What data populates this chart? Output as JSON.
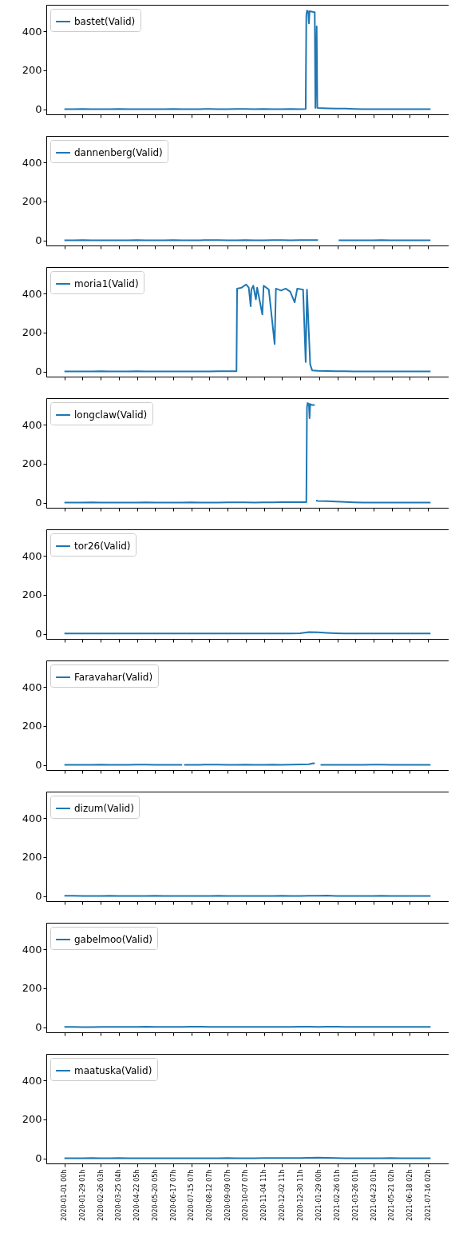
{
  "chart_data": [
    {
      "type": "line",
      "legend": "top left",
      "tick_labels": "y",
      "ylim": [
        -25,
        535
      ],
      "yticks": [
        0,
        200,
        400
      ],
      "xlim": [
        "2019-12-04",
        "2021-08-17"
      ],
      "xticks": [
        {
          "value": "2020-01-01T00:00",
          "label": null
        },
        {
          "value": "2020-01-29T01:00",
          "label": null
        },
        {
          "value": "2020-02-26T03:00",
          "label": null
        },
        {
          "value": "2020-03-25T04:00",
          "label": null
        },
        {
          "value": "2020-04-22T05:00",
          "label": null
        },
        {
          "value": "2020-05-20T05:00",
          "label": null
        },
        {
          "value": "2020-06-17T07:00",
          "label": null
        },
        {
          "value": "2020-07-15T07:00",
          "label": null
        },
        {
          "value": "2020-08-12T07:00",
          "label": null
        },
        {
          "value": "2020-09-09T07:00",
          "label": null
        },
        {
          "value": "2020-10-07T07:00",
          "label": null
        },
        {
          "value": "2020-11-04T11:00",
          "label": null
        },
        {
          "value": "2020-12-02T11:00",
          "label": null
        },
        {
          "value": "2020-12-30T11:00",
          "label": null
        },
        {
          "value": "2021-01-29T00:00",
          "label": null
        },
        {
          "value": "2021-02-26T01:00",
          "label": null
        },
        {
          "value": "2021-03-26T01:00",
          "label": null
        },
        {
          "value": "2021-04-23T01:00",
          "label": null
        },
        {
          "value": "2021-05-21T02:00",
          "label": null
        },
        {
          "value": "2021-06-18T02:00",
          "label": null
        },
        {
          "value": "2021-07-16T02:00",
          "label": null
        }
      ],
      "x": [
        "2020-01-01",
        "2020-01-15",
        "2020-01-29",
        "2020-02-12",
        "2020-02-26",
        "2020-03-11",
        "2020-03-25",
        "2020-04-08",
        "2020-04-22",
        "2020-05-06",
        "2020-05-20",
        "2020-06-03",
        "2020-06-17",
        "2020-07-01",
        "2020-07-15",
        "2020-07-29",
        "2020-08-12",
        "2020-08-26",
        "2020-09-09",
        "2020-09-23",
        "2020-10-07",
        "2020-10-21",
        "2020-11-04",
        "2020-11-18",
        "2020-12-02",
        "2020-12-16",
        "2020-12-30",
        "2021-01-08",
        "2021-01-09",
        "2021-01-10",
        "2021-01-12",
        "2021-01-13",
        "2021-01-14",
        "2021-01-17",
        "2021-01-20",
        "2021-01-22",
        "2021-01-23",
        "2021-01-25",
        "2021-01-26",
        "2021-01-27",
        "2021-02-10",
        "2021-02-24",
        "2021-03-10",
        "2021-03-24",
        "2021-04-07",
        "2021-04-21",
        "2021-05-05",
        "2021-05-19",
        "2021-06-02",
        "2021-06-16",
        "2021-06-30",
        "2021-07-14",
        "2021-07-20"
      ],
      "series": [
        {
          "name": "bastet(Valid)",
          "color": "#1f77b4",
          "values": [
            2,
            2,
            3,
            2,
            2,
            2,
            3,
            2,
            2,
            2,
            2,
            2,
            3,
            2,
            2,
            2,
            3,
            2,
            2,
            3,
            3,
            2,
            3,
            2,
            2,
            3,
            2,
            3,
            480,
            505,
            500,
            440,
            502,
            500,
            498,
            497,
            8,
            425,
            9,
            8,
            6,
            5,
            5,
            3,
            2,
            2,
            2,
            2,
            2,
            2,
            2,
            2,
            2
          ]
        }
      ]
    },
    {
      "type": "line",
      "legend": "top left",
      "tick_labels": "y",
      "ylim": [
        -25,
        535
      ],
      "yticks": [
        0,
        200,
        400
      ],
      "xlim": [
        "2019-12-04",
        "2021-08-17"
      ],
      "xticks": [
        {
          "value": "2020-01-01T00:00",
          "label": null
        },
        {
          "value": "2020-01-29T01:00",
          "label": null
        },
        {
          "value": "2020-02-26T03:00",
          "label": null
        },
        {
          "value": "2020-03-25T04:00",
          "label": null
        },
        {
          "value": "2020-04-22T05:00",
          "label": null
        },
        {
          "value": "2020-05-20T05:00",
          "label": null
        },
        {
          "value": "2020-06-17T07:00",
          "label": null
        },
        {
          "value": "2020-07-15T07:00",
          "label": null
        },
        {
          "value": "2020-08-12T07:00",
          "label": null
        },
        {
          "value": "2020-09-09T07:00",
          "label": null
        },
        {
          "value": "2020-10-07T07:00",
          "label": null
        },
        {
          "value": "2020-11-04T11:00",
          "label": null
        },
        {
          "value": "2020-12-02T11:00",
          "label": null
        },
        {
          "value": "2020-12-30T11:00",
          "label": null
        },
        {
          "value": "2021-01-29T00:00",
          "label": null
        },
        {
          "value": "2021-02-26T01:00",
          "label": null
        },
        {
          "value": "2021-03-26T01:00",
          "label": null
        },
        {
          "value": "2021-04-23T01:00",
          "label": null
        },
        {
          "value": "2021-05-21T02:00",
          "label": null
        },
        {
          "value": "2021-06-18T02:00",
          "label": null
        },
        {
          "value": "2021-07-16T02:00",
          "label": null
        }
      ],
      "x": [
        "2020-01-01",
        "2020-01-15",
        "2020-01-29",
        "2020-02-12",
        "2020-02-26",
        "2020-03-11",
        "2020-03-25",
        "2020-04-08",
        "2020-04-22",
        "2020-05-06",
        "2020-05-20",
        "2020-06-03",
        "2020-06-17",
        "2020-07-01",
        "2020-07-15",
        "2020-07-29",
        "2020-08-12",
        "2020-08-26",
        "2020-09-09",
        "2020-09-23",
        "2020-10-07",
        "2020-10-21",
        "2020-11-04",
        "2020-11-18",
        "2020-12-02",
        "2020-12-16",
        "2020-12-30",
        "2021-01-13",
        "2021-01-27",
        "2021-02-01",
        "2021-02-04",
        "2021-02-07",
        "2021-02-15",
        "2021-02-28",
        "2021-03-10",
        "2021-03-24",
        "2021-04-07",
        "2021-04-21",
        "2021-05-05",
        "2021-05-19",
        "2021-06-02",
        "2021-06-16",
        "2021-06-30",
        "2021-07-14",
        "2021-07-20"
      ],
      "series": [
        {
          "name": "dannenberg(Valid)",
          "color": "#1f77b4",
          "values": [
            2,
            2,
            3,
            2,
            2,
            2,
            2,
            2,
            3,
            2,
            2,
            2,
            3,
            2,
            2,
            2,
            3,
            3,
            2,
            2,
            3,
            2,
            2,
            3,
            3,
            2,
            3,
            3,
            3,
            null,
            null,
            null,
            null,
            2,
            2,
            2,
            2,
            2,
            3,
            2,
            2,
            2,
            2,
            2,
            2
          ]
        }
      ]
    },
    {
      "type": "line",
      "legend": "top left",
      "tick_labels": "y",
      "ylim": [
        -25,
        535
      ],
      "yticks": [
        0,
        200,
        400
      ],
      "xlim": [
        "2019-12-04",
        "2021-08-17"
      ],
      "xticks": [
        {
          "value": "2020-01-01T00:00",
          "label": null
        },
        {
          "value": "2020-01-29T01:00",
          "label": null
        },
        {
          "value": "2020-02-26T03:00",
          "label": null
        },
        {
          "value": "2020-03-25T04:00",
          "label": null
        },
        {
          "value": "2020-04-22T05:00",
          "label": null
        },
        {
          "value": "2020-05-20T05:00",
          "label": null
        },
        {
          "value": "2020-06-17T07:00",
          "label": null
        },
        {
          "value": "2020-07-15T07:00",
          "label": null
        },
        {
          "value": "2020-08-12T07:00",
          "label": null
        },
        {
          "value": "2020-09-09T07:00",
          "label": null
        },
        {
          "value": "2020-10-07T07:00",
          "label": null
        },
        {
          "value": "2020-11-04T11:00",
          "label": null
        },
        {
          "value": "2020-12-02T11:00",
          "label": null
        },
        {
          "value": "2020-12-30T11:00",
          "label": null
        },
        {
          "value": "2021-01-29T00:00",
          "label": null
        },
        {
          "value": "2021-02-26T01:00",
          "label": null
        },
        {
          "value": "2021-03-26T01:00",
          "label": null
        },
        {
          "value": "2021-04-23T01:00",
          "label": null
        },
        {
          "value": "2021-05-21T02:00",
          "label": null
        },
        {
          "value": "2021-06-18T02:00",
          "label": null
        },
        {
          "value": "2021-07-16T02:00",
          "label": null
        }
      ],
      "x": [
        "2020-01-01",
        "2020-01-15",
        "2020-01-29",
        "2020-02-12",
        "2020-02-26",
        "2020-03-11",
        "2020-03-25",
        "2020-04-08",
        "2020-04-22",
        "2020-05-06",
        "2020-05-20",
        "2020-06-03",
        "2020-06-17",
        "2020-07-01",
        "2020-07-15",
        "2020-07-29",
        "2020-08-12",
        "2020-08-26",
        "2020-09-09",
        "2020-09-23",
        "2020-09-24",
        "2020-10-01",
        "2020-10-08",
        "2020-10-12",
        "2020-10-15",
        "2020-10-16",
        "2020-10-19",
        "2020-10-23",
        "2020-10-25",
        "2020-11-02",
        "2020-11-04",
        "2020-11-12",
        "2020-11-21",
        "2020-11-23",
        "2020-12-01",
        "2020-12-08",
        "2020-12-15",
        "2020-12-22",
        "2020-12-26",
        "2021-01-04",
        "2021-01-08",
        "2021-01-10",
        "2021-01-15",
        "2021-01-18",
        "2021-01-27",
        "2021-02-10",
        "2021-02-24",
        "2021-03-10",
        "2021-03-24",
        "2021-04-07",
        "2021-04-21",
        "2021-05-05",
        "2021-05-19",
        "2021-06-02",
        "2021-06-16",
        "2021-06-30",
        "2021-07-14",
        "2021-07-20"
      ],
      "series": [
        {
          "name": "moria1(Valid)",
          "color": "#1f77b4",
          "values": [
            2,
            2,
            2,
            2,
            3,
            2,
            2,
            2,
            3,
            2,
            2,
            2,
            2,
            2,
            2,
            2,
            2,
            3,
            3,
            3,
            425,
            430,
            446,
            430,
            335,
            420,
            440,
            370,
            430,
            293,
            440,
            420,
            142,
            425,
            415,
            425,
            410,
            355,
            425,
            420,
            50,
            420,
            37,
            7,
            5,
            4,
            3,
            3,
            2,
            2,
            2,
            2,
            2,
            2,
            2,
            2,
            2,
            2
          ]
        }
      ]
    },
    {
      "type": "line",
      "legend": "top left",
      "tick_labels": "y",
      "ylim": [
        -25,
        535
      ],
      "yticks": [
        0,
        200,
        400
      ],
      "xlim": [
        "2019-12-04",
        "2021-08-17"
      ],
      "xticks": [
        {
          "value": "2020-01-01T00:00",
          "label": null
        },
        {
          "value": "2020-01-29T01:00",
          "label": null
        },
        {
          "value": "2020-02-26T03:00",
          "label": null
        },
        {
          "value": "2020-03-25T04:00",
          "label": null
        },
        {
          "value": "2020-04-22T05:00",
          "label": null
        },
        {
          "value": "2020-05-20T05:00",
          "label": null
        },
        {
          "value": "2020-06-17T07:00",
          "label": null
        },
        {
          "value": "2020-07-15T07:00",
          "label": null
        },
        {
          "value": "2020-08-12T07:00",
          "label": null
        },
        {
          "value": "2020-09-09T07:00",
          "label": null
        },
        {
          "value": "2020-10-07T07:00",
          "label": null
        },
        {
          "value": "2020-11-04T11:00",
          "label": null
        },
        {
          "value": "2020-12-02T11:00",
          "label": null
        },
        {
          "value": "2020-12-30T11:00",
          "label": null
        },
        {
          "value": "2021-01-29T00:00",
          "label": null
        },
        {
          "value": "2021-02-26T01:00",
          "label": null
        },
        {
          "value": "2021-03-26T01:00",
          "label": null
        },
        {
          "value": "2021-04-23T01:00",
          "label": null
        },
        {
          "value": "2021-05-21T02:00",
          "label": null
        },
        {
          "value": "2021-06-18T02:00",
          "label": null
        },
        {
          "value": "2021-07-16T02:00",
          "label": null
        }
      ],
      "x": [
        "2020-01-01",
        "2020-01-15",
        "2020-01-29",
        "2020-02-12",
        "2020-02-26",
        "2020-03-11",
        "2020-03-25",
        "2020-04-08",
        "2020-04-22",
        "2020-05-06",
        "2020-05-20",
        "2020-06-03",
        "2020-06-17",
        "2020-07-01",
        "2020-07-15",
        "2020-07-29",
        "2020-08-12",
        "2020-08-26",
        "2020-09-09",
        "2020-09-23",
        "2020-10-07",
        "2020-10-21",
        "2020-11-04",
        "2020-11-18",
        "2020-12-02",
        "2020-12-16",
        "2020-12-30",
        "2021-01-09",
        "2021-01-10",
        "2021-01-11",
        "2021-01-13",
        "2021-01-14",
        "2021-01-15",
        "2021-01-18",
        "2021-01-22",
        "2021-01-23",
        "2021-01-24",
        "2021-01-27",
        "2021-02-10",
        "2021-02-24",
        "2021-03-10",
        "2021-03-24",
        "2021-04-07",
        "2021-04-21",
        "2021-05-05",
        "2021-05-19",
        "2021-06-02",
        "2021-06-16",
        "2021-06-30",
        "2021-07-14",
        "2021-07-20"
      ],
      "series": [
        {
          "name": "longclaw(Valid)",
          "color": "#1f77b4",
          "values": [
            2,
            2,
            2,
            3,
            2,
            2,
            2,
            2,
            2,
            3,
            2,
            2,
            2,
            2,
            3,
            2,
            2,
            2,
            3,
            3,
            3,
            2,
            3,
            3,
            4,
            4,
            4,
            4,
            490,
            510,
            505,
            433,
            505,
            500,
            500,
            null,
            12,
            10,
            9,
            7,
            5,
            3,
            2,
            2,
            2,
            2,
            2,
            2,
            2,
            2,
            2
          ]
        }
      ]
    },
    {
      "type": "line",
      "legend": "top left",
      "tick_labels": "y",
      "ylim": [
        -25,
        535
      ],
      "yticks": [
        0,
        200,
        400
      ],
      "xlim": [
        "2019-12-04",
        "2021-08-17"
      ],
      "xticks": [
        {
          "value": "2020-01-01T00:00",
          "label": null
        },
        {
          "value": "2020-01-29T01:00",
          "label": null
        },
        {
          "value": "2020-02-26T03:00",
          "label": null
        },
        {
          "value": "2020-03-25T04:00",
          "label": null
        },
        {
          "value": "2020-04-22T05:00",
          "label": null
        },
        {
          "value": "2020-05-20T05:00",
          "label": null
        },
        {
          "value": "2020-06-17T07:00",
          "label": null
        },
        {
          "value": "2020-07-15T07:00",
          "label": null
        },
        {
          "value": "2020-08-12T07:00",
          "label": null
        },
        {
          "value": "2020-09-09T07:00",
          "label": null
        },
        {
          "value": "2020-10-07T07:00",
          "label": null
        },
        {
          "value": "2020-11-04T11:00",
          "label": null
        },
        {
          "value": "2020-12-02T11:00",
          "label": null
        },
        {
          "value": "2020-12-30T11:00",
          "label": null
        },
        {
          "value": "2021-01-29T00:00",
          "label": null
        },
        {
          "value": "2021-02-26T01:00",
          "label": null
        },
        {
          "value": "2021-03-26T01:00",
          "label": null
        },
        {
          "value": "2021-04-23T01:00",
          "label": null
        },
        {
          "value": "2021-05-21T02:00",
          "label": null
        },
        {
          "value": "2021-06-18T02:00",
          "label": null
        },
        {
          "value": "2021-07-16T02:00",
          "label": null
        }
      ],
      "x": [
        "2020-01-01",
        "2020-01-15",
        "2020-01-29",
        "2020-02-12",
        "2020-02-26",
        "2020-03-11",
        "2020-03-25",
        "2020-04-08",
        "2020-04-22",
        "2020-05-06",
        "2020-05-20",
        "2020-06-03",
        "2020-06-17",
        "2020-07-01",
        "2020-07-15",
        "2020-07-29",
        "2020-08-12",
        "2020-08-26",
        "2020-09-09",
        "2020-09-23",
        "2020-10-07",
        "2020-10-21",
        "2020-11-04",
        "2020-11-18",
        "2020-12-02",
        "2020-12-16",
        "2020-12-30",
        "2021-01-13",
        "2021-01-27",
        "2021-02-10",
        "2021-02-24",
        "2021-03-10",
        "2021-03-24",
        "2021-04-07",
        "2021-04-21",
        "2021-05-05",
        "2021-05-19",
        "2021-06-02",
        "2021-06-16",
        "2021-06-30",
        "2021-07-14",
        "2021-07-20"
      ],
      "series": [
        {
          "name": "tor26(Valid)",
          "color": "#1f77b4",
          "values": [
            3,
            3,
            3,
            3,
            3,
            3,
            3,
            3,
            3,
            3,
            3,
            3,
            3,
            3,
            3,
            3,
            3,
            3,
            3,
            3,
            3,
            3,
            3,
            3,
            3,
            3,
            4,
            10,
            9,
            6,
            4,
            3,
            3,
            3,
            3,
            3,
            3,
            3,
            3,
            3,
            3,
            3
          ]
        }
      ]
    },
    {
      "type": "line",
      "legend": "top left",
      "tick_labels": "y",
      "ylim": [
        -25,
        535
      ],
      "yticks": [
        0,
        200,
        400
      ],
      "xlim": [
        "2019-12-04",
        "2021-08-17"
      ],
      "xticks": [
        {
          "value": "2020-01-01T00:00",
          "label": null
        },
        {
          "value": "2020-01-29T01:00",
          "label": null
        },
        {
          "value": "2020-02-26T03:00",
          "label": null
        },
        {
          "value": "2020-03-25T04:00",
          "label": null
        },
        {
          "value": "2020-04-22T05:00",
          "label": null
        },
        {
          "value": "2020-05-20T05:00",
          "label": null
        },
        {
          "value": "2020-06-17T07:00",
          "label": null
        },
        {
          "value": "2020-07-15T07:00",
          "label": null
        },
        {
          "value": "2020-08-12T07:00",
          "label": null
        },
        {
          "value": "2020-09-09T07:00",
          "label": null
        },
        {
          "value": "2020-10-07T07:00",
          "label": null
        },
        {
          "value": "2020-11-04T11:00",
          "label": null
        },
        {
          "value": "2020-12-02T11:00",
          "label": null
        },
        {
          "value": "2020-12-30T11:00",
          "label": null
        },
        {
          "value": "2021-01-29T00:00",
          "label": null
        },
        {
          "value": "2021-02-26T01:00",
          "label": null
        },
        {
          "value": "2021-03-26T01:00",
          "label": null
        },
        {
          "value": "2021-04-23T01:00",
          "label": null
        },
        {
          "value": "2021-05-21T02:00",
          "label": null
        },
        {
          "value": "2021-06-18T02:00",
          "label": null
        },
        {
          "value": "2021-07-16T02:00",
          "label": null
        }
      ],
      "x": [
        "2020-01-01",
        "2020-01-15",
        "2020-01-29",
        "2020-02-12",
        "2020-02-26",
        "2020-03-11",
        "2020-03-25",
        "2020-04-08",
        "2020-04-22",
        "2020-05-06",
        "2020-05-20",
        "2020-06-03",
        "2020-06-17",
        "2020-07-01",
        "2020-07-02",
        "2020-07-04",
        "2020-07-15",
        "2020-07-29",
        "2020-08-12",
        "2020-08-26",
        "2020-09-09",
        "2020-09-23",
        "2020-10-07",
        "2020-10-21",
        "2020-11-04",
        "2020-11-18",
        "2020-12-02",
        "2020-12-16",
        "2020-12-30",
        "2021-01-13",
        "2021-01-20",
        "2021-01-22",
        "2021-01-25",
        "2021-01-31",
        "2021-02-10",
        "2021-02-24",
        "2021-03-10",
        "2021-03-24",
        "2021-04-07",
        "2021-04-21",
        "2021-05-05",
        "2021-05-19",
        "2021-06-02",
        "2021-06-16",
        "2021-06-30",
        "2021-07-14",
        "2021-07-20"
      ],
      "series": [
        {
          "name": "Faravahar(Valid)",
          "color": "#1f77b4",
          "values": [
            2,
            2,
            2,
            2,
            3,
            2,
            2,
            2,
            3,
            3,
            2,
            2,
            2,
            2,
            null,
            2,
            2,
            2,
            3,
            3,
            2,
            2,
            3,
            2,
            2,
            3,
            2,
            3,
            4,
            5,
            10,
            9,
            null,
            2,
            2,
            2,
            2,
            2,
            2,
            3,
            3,
            2,
            2,
            2,
            2,
            2,
            2
          ]
        }
      ]
    },
    {
      "type": "line",
      "legend": "top left",
      "tick_labels": "y",
      "ylim": [
        -25,
        535
      ],
      "yticks": [
        0,
        200,
        400
      ],
      "xlim": [
        "2019-12-04",
        "2021-08-17"
      ],
      "xticks": [
        {
          "value": "2020-01-01T00:00",
          "label": null
        },
        {
          "value": "2020-01-29T01:00",
          "label": null
        },
        {
          "value": "2020-02-26T03:00",
          "label": null
        },
        {
          "value": "2020-03-25T04:00",
          "label": null
        },
        {
          "value": "2020-04-22T05:00",
          "label": null
        },
        {
          "value": "2020-05-20T05:00",
          "label": null
        },
        {
          "value": "2020-06-17T07:00",
          "label": null
        },
        {
          "value": "2020-07-15T07:00",
          "label": null
        },
        {
          "value": "2020-08-12T07:00",
          "label": null
        },
        {
          "value": "2020-09-09T07:00",
          "label": null
        },
        {
          "value": "2020-10-07T07:00",
          "label": null
        },
        {
          "value": "2020-11-04T11:00",
          "label": null
        },
        {
          "value": "2020-12-02T11:00",
          "label": null
        },
        {
          "value": "2020-12-30T11:00",
          "label": null
        },
        {
          "value": "2021-01-29T00:00",
          "label": null
        },
        {
          "value": "2021-02-26T01:00",
          "label": null
        },
        {
          "value": "2021-03-26T01:00",
          "label": null
        },
        {
          "value": "2021-04-23T01:00",
          "label": null
        },
        {
          "value": "2021-05-21T02:00",
          "label": null
        },
        {
          "value": "2021-06-18T02:00",
          "label": null
        },
        {
          "value": "2021-07-16T02:00",
          "label": null
        }
      ],
      "x": [
        "2020-01-01",
        "2020-01-15",
        "2020-01-29",
        "2020-02-12",
        "2020-02-26",
        "2020-03-11",
        "2020-03-25",
        "2020-04-08",
        "2020-04-22",
        "2020-05-06",
        "2020-05-20",
        "2020-06-03",
        "2020-06-17",
        "2020-07-01",
        "2020-07-15",
        "2020-07-29",
        "2020-08-12",
        "2020-08-26",
        "2020-09-09",
        "2020-09-23",
        "2020-10-07",
        "2020-10-21",
        "2020-11-04",
        "2020-11-18",
        "2020-12-02",
        "2020-12-16",
        "2020-12-30",
        "2021-01-13",
        "2021-01-27",
        "2021-02-10",
        "2021-02-24",
        "2021-03-10",
        "2021-03-24",
        "2021-04-07",
        "2021-04-21",
        "2021-05-05",
        "2021-05-19",
        "2021-06-02",
        "2021-06-16",
        "2021-06-30",
        "2021-07-14",
        "2021-07-20"
      ],
      "series": [
        {
          "name": "dizum(Valid)",
          "color": "#1f77b4",
          "values": [
            3,
            3,
            2,
            2,
            2,
            3,
            2,
            2,
            2,
            2,
            3,
            2,
            2,
            2,
            2,
            2,
            2,
            3,
            2,
            2,
            2,
            2,
            2,
            2,
            3,
            2,
            2,
            3,
            3,
            4,
            2,
            2,
            2,
            2,
            2,
            3,
            2,
            2,
            2,
            2,
            2,
            2
          ]
        }
      ]
    },
    {
      "type": "line",
      "legend": "top left",
      "tick_labels": "y",
      "ylim": [
        -25,
        535
      ],
      "yticks": [
        0,
        200,
        400
      ],
      "xlim": [
        "2019-12-04",
        "2021-08-17"
      ],
      "xticks": [
        {
          "value": "2020-01-01T00:00",
          "label": null
        },
        {
          "value": "2020-01-29T01:00",
          "label": null
        },
        {
          "value": "2020-02-26T03:00",
          "label": null
        },
        {
          "value": "2020-03-25T04:00",
          "label": null
        },
        {
          "value": "2020-04-22T05:00",
          "label": null
        },
        {
          "value": "2020-05-20T05:00",
          "label": null
        },
        {
          "value": "2020-06-17T07:00",
          "label": null
        },
        {
          "value": "2020-07-15T07:00",
          "label": null
        },
        {
          "value": "2020-08-12T07:00",
          "label": null
        },
        {
          "value": "2020-09-09T07:00",
          "label": null
        },
        {
          "value": "2020-10-07T07:00",
          "label": null
        },
        {
          "value": "2020-11-04T11:00",
          "label": null
        },
        {
          "value": "2020-12-02T11:00",
          "label": null
        },
        {
          "value": "2020-12-30T11:00",
          "label": null
        },
        {
          "value": "2021-01-29T00:00",
          "label": null
        },
        {
          "value": "2021-02-26T01:00",
          "label": null
        },
        {
          "value": "2021-03-26T01:00",
          "label": null
        },
        {
          "value": "2021-04-23T01:00",
          "label": null
        },
        {
          "value": "2021-05-21T02:00",
          "label": null
        },
        {
          "value": "2021-06-18T02:00",
          "label": null
        },
        {
          "value": "2021-07-16T02:00",
          "label": null
        }
      ],
      "x": [
        "2020-01-01",
        "2020-01-15",
        "2020-01-29",
        "2020-02-12",
        "2020-02-26",
        "2020-03-11",
        "2020-03-25",
        "2020-04-08",
        "2020-04-22",
        "2020-05-06",
        "2020-05-20",
        "2020-06-03",
        "2020-06-17",
        "2020-07-01",
        "2020-07-15",
        "2020-07-29",
        "2020-08-12",
        "2020-08-26",
        "2020-09-09",
        "2020-09-23",
        "2020-10-07",
        "2020-10-21",
        "2020-11-04",
        "2020-11-18",
        "2020-12-02",
        "2020-12-16",
        "2020-12-30",
        "2021-01-13",
        "2021-01-27",
        "2021-02-10",
        "2021-02-24",
        "2021-03-10",
        "2021-03-24",
        "2021-04-07",
        "2021-04-21",
        "2021-05-05",
        "2021-05-19",
        "2021-06-02",
        "2021-06-16",
        "2021-06-30",
        "2021-07-14",
        "2021-07-20"
      ],
      "series": [
        {
          "name": "gabelmoo(Valid)",
          "color": "#1f77b4",
          "values": [
            3,
            3,
            2,
            2,
            3,
            3,
            3,
            3,
            3,
            4,
            3,
            3,
            3,
            3,
            4,
            4,
            3,
            3,
            3,
            3,
            3,
            3,
            3,
            3,
            3,
            3,
            4,
            4,
            3,
            4,
            4,
            3,
            3,
            3,
            3,
            3,
            3,
            3,
            3,
            3,
            3,
            3
          ]
        }
      ]
    },
    {
      "type": "line",
      "legend": "top left",
      "ylim": [
        -25,
        535
      ],
      "yticks": [
        0,
        200,
        400
      ],
      "xlim": [
        "2019-12-04",
        "2021-08-17"
      ],
      "xticks": [
        {
          "value": "2020-01-01T00:00",
          "label": "2020-01-01 00h"
        },
        {
          "value": "2020-01-29T01:00",
          "label": "2020-01-29 01h"
        },
        {
          "value": "2020-02-26T03:00",
          "label": "2020-02-26 03h"
        },
        {
          "value": "2020-03-25T04:00",
          "label": "2020-03-25 04h"
        },
        {
          "value": "2020-04-22T05:00",
          "label": "2020-04-22 05h"
        },
        {
          "value": "2020-05-20T05:00",
          "label": "2020-05-20 05h"
        },
        {
          "value": "2020-06-17T07:00",
          "label": "2020-06-17 07h"
        },
        {
          "value": "2020-07-15T07:00",
          "label": "2020-07-15 07h"
        },
        {
          "value": "2020-08-12T07:00",
          "label": "2020-08-12 07h"
        },
        {
          "value": "2020-09-09T07:00",
          "label": "2020-09-09 07h"
        },
        {
          "value": "2020-10-07T07:00",
          "label": "2020-10-07 07h"
        },
        {
          "value": "2020-11-04T11:00",
          "label": "2020-11-04 11h"
        },
        {
          "value": "2020-12-02T11:00",
          "label": "2020-12-02 11h"
        },
        {
          "value": "2020-12-30T11:00",
          "label": "2020-12-30 11h"
        },
        {
          "value": "2021-01-29T00:00",
          "label": "2021-01-29 00h"
        },
        {
          "value": "2021-02-26T01:00",
          "label": "2021-02-26 01h"
        },
        {
          "value": "2021-03-26T01:00",
          "label": "2021-03-26 01h"
        },
        {
          "value": "2021-04-23T01:00",
          "label": "2021-04-23 01h"
        },
        {
          "value": "2021-05-21T02:00",
          "label": "2021-05-21 02h"
        },
        {
          "value": "2021-06-18T02:00",
          "label": "2021-06-18 02h"
        },
        {
          "value": "2021-07-16T02:00",
          "label": "2021-07-16 02h"
        }
      ],
      "x": [
        "2020-01-01",
        "2020-01-15",
        "2020-01-29",
        "2020-02-12",
        "2020-02-26",
        "2020-03-11",
        "2020-03-25",
        "2020-04-08",
        "2020-04-22",
        "2020-05-06",
        "2020-05-20",
        "2020-06-03",
        "2020-06-17",
        "2020-07-01",
        "2020-07-15",
        "2020-07-29",
        "2020-08-12",
        "2020-08-26",
        "2020-09-09",
        "2020-09-23",
        "2020-10-07",
        "2020-10-21",
        "2020-11-04",
        "2020-11-18",
        "2020-12-02",
        "2020-12-16",
        "2020-12-30",
        "2021-01-13",
        "2021-01-27",
        "2021-02-10",
        "2021-02-24",
        "2021-03-10",
        "2021-03-24",
        "2021-04-07",
        "2021-04-21",
        "2021-05-05",
        "2021-05-19",
        "2021-06-02",
        "2021-06-16",
        "2021-06-30",
        "2021-07-14",
        "2021-07-20"
      ],
      "series": [
        {
          "name": "maatuska(Valid)",
          "color": "#1f77b4",
          "values": [
            2,
            2,
            2,
            3,
            2,
            2,
            3,
            2,
            2,
            2,
            2,
            2,
            2,
            2,
            2,
            2,
            2,
            2,
            3,
            2,
            2,
            2,
            3,
            3,
            3,
            3,
            3,
            4,
            5,
            4,
            3,
            2,
            2,
            2,
            2,
            2,
            3,
            2,
            2,
            2,
            2,
            2
          ]
        }
      ]
    }
  ]
}
